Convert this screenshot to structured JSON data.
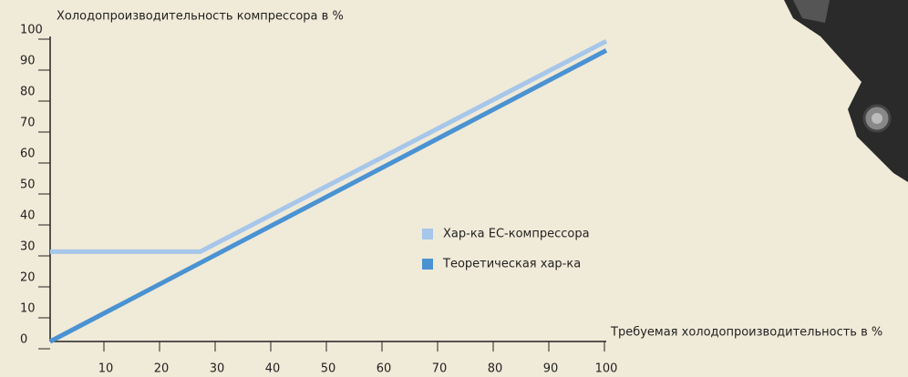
{
  "chart_data": {
    "type": "line",
    "y_axis_title": "Холодопроизводительность компрессора в  %",
    "x_axis_title": "Требуемая холодопроизводительность в %",
    "xlim": [
      0,
      100
    ],
    "ylim": [
      0,
      100
    ],
    "xticks": [
      10,
      20,
      30,
      40,
      50,
      60,
      70,
      80,
      90,
      100
    ],
    "yticks": [
      0,
      10,
      20,
      30,
      40,
      50,
      60,
      70,
      80,
      90,
      100
    ],
    "series": [
      {
        "name": "Хар-ка ЕС-компрессора",
        "color": "#a6c6ea",
        "x": [
          0,
          27,
          100
        ],
        "values": [
          29,
          29,
          97
        ]
      },
      {
        "name": "Теоретическая хар-ка",
        "color": "#4a92d2",
        "x": [
          0,
          100
        ],
        "values": [
          0,
          94
        ]
      }
    ]
  }
}
